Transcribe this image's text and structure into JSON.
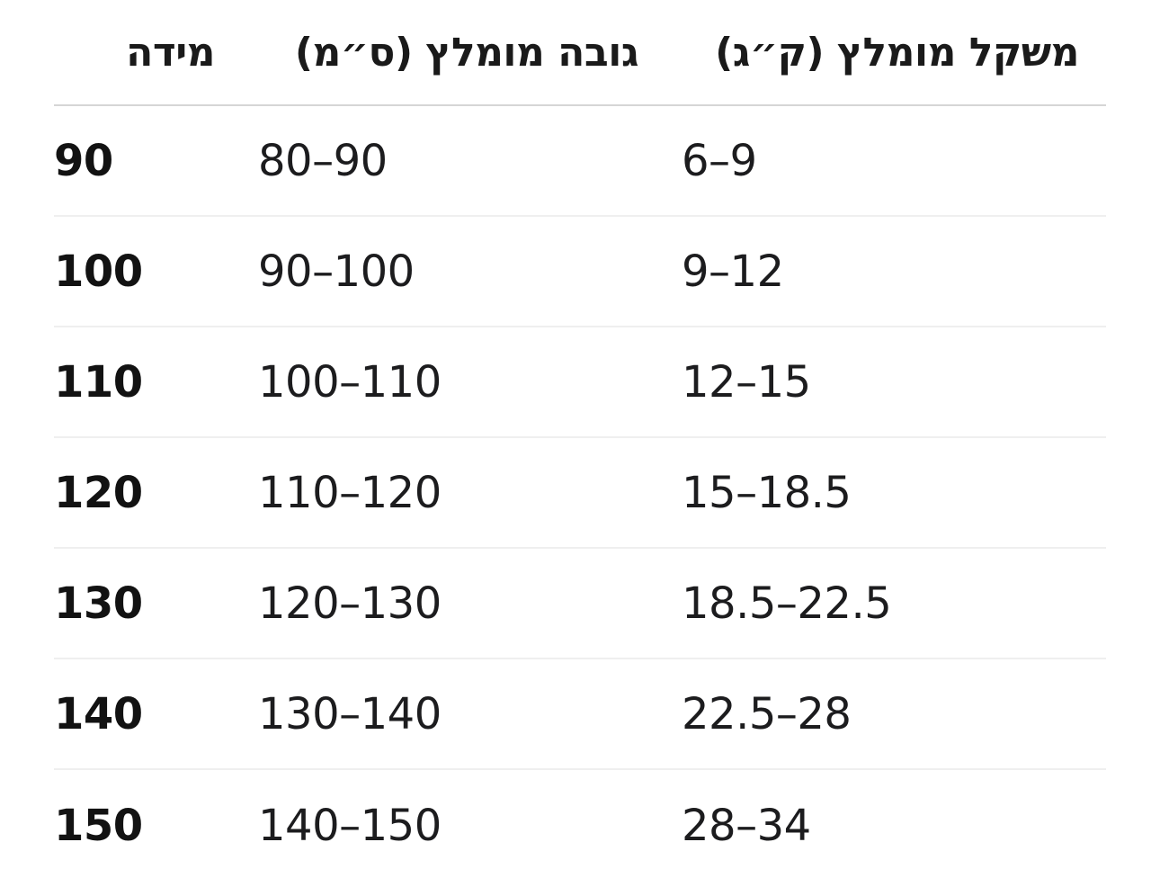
{
  "chart_data": {
    "type": "table",
    "direction": "rtl",
    "headers": {
      "size": "מידה",
      "height": "גובה מומלץ (ס״מ)",
      "weight": "משקל מומלץ (ק״ג)"
    },
    "rows": [
      {
        "size": "90",
        "height": "80–90",
        "weight": "6–9"
      },
      {
        "size": "100",
        "height": "90–100",
        "weight": "9–12"
      },
      {
        "size": "110",
        "height": "100–110",
        "weight": "12–15"
      },
      {
        "size": "120",
        "height": "110–120",
        "weight": "15–18.5"
      },
      {
        "size": "130",
        "height": "120–130",
        "weight": "18.5–22.5"
      },
      {
        "size": "140",
        "height": "130–140",
        "weight": "22.5–28"
      },
      {
        "size": "150",
        "height": "140–150",
        "weight": "28–34"
      }
    ]
  },
  "colors": {
    "background": "#ffffff",
    "text": "#1a1a1a",
    "header_divider": "#d6d6d6",
    "row_divider": "#efefef"
  }
}
